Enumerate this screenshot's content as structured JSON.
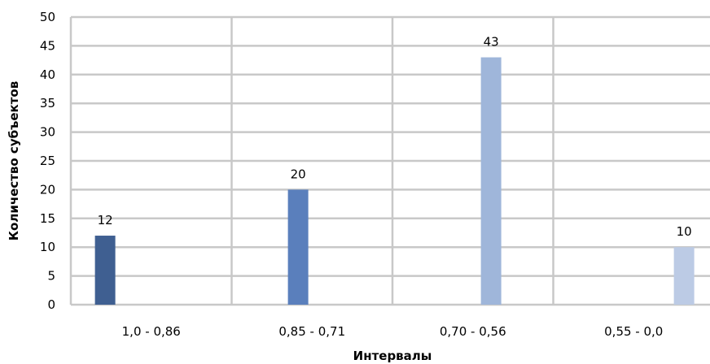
{
  "chart_data": {
    "type": "bar",
    "title": "",
    "xlabel": "Интервалы",
    "ylabel": "Количество субъектов",
    "ylim": [
      0,
      50
    ],
    "y_ticks": [
      0,
      5,
      10,
      15,
      20,
      25,
      30,
      35,
      40,
      45,
      50
    ],
    "grid": true,
    "legend": "none",
    "categories": [
      "1,0 - 0,86",
      "0,85 - 0,71",
      "0,70 - 0,56",
      "0,55 - 0,0"
    ],
    "values": [
      12,
      20,
      43,
      10
    ],
    "data_labels": [
      "12",
      "20",
      "43",
      "10"
    ],
    "colors": [
      "#3f5f91",
      "#5a7fbc",
      "#9fb6da",
      "#bccbe5"
    ]
  }
}
